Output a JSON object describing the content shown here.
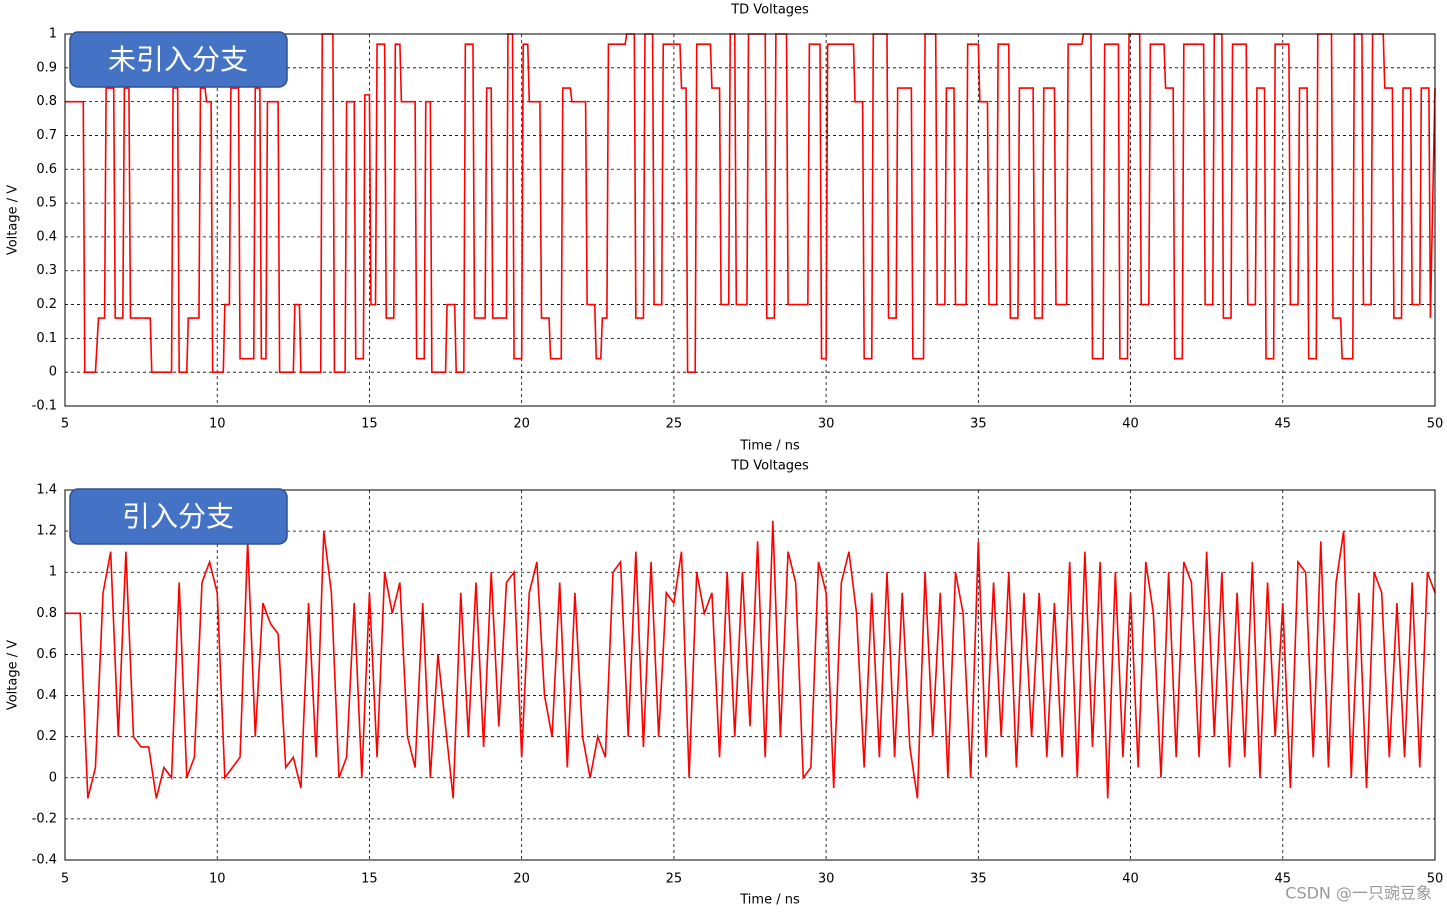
{
  "chart_data": [
    {
      "type": "line",
      "title": "TD Voltages",
      "x_label": "Time / ns",
      "y_label": "Voltage / V",
      "annotation": "未引入分支",
      "xlim": [
        5,
        50
      ],
      "xticks": [
        5,
        10,
        15,
        20,
        25,
        30,
        35,
        40,
        45,
        50
      ],
      "ylim": [
        -0.1,
        1
      ],
      "yticks": [
        -0.1,
        0,
        0.1,
        0.2,
        0.3,
        0.4,
        0.5,
        0.6,
        0.7,
        0.8,
        0.9,
        1
      ],
      "grid": true,
      "color": "#ff0000",
      "x": [
        5,
        5.6,
        5.65,
        6,
        6.1,
        6.3,
        6.35,
        6.6,
        6.65,
        6.9,
        6.95,
        7.1,
        7.15,
        7.8,
        7.85,
        8.5,
        8.55,
        8.7,
        8.75,
        9,
        9.05,
        9.4,
        9.45,
        9.6,
        9.65,
        9.8,
        9.85,
        10.2,
        10.25,
        10.4,
        10.45,
        10.7,
        10.75,
        11.2,
        11.25,
        11.4,
        11.45,
        11.6,
        11.65,
        12,
        12.05,
        12.5,
        12.55,
        12.7,
        12.75,
        13.4,
        13.45,
        13.8,
        13.85,
        14.2,
        14.25,
        14.5,
        14.55,
        14.8,
        14.85,
        15,
        15.05,
        15.2,
        15.25,
        15.5,
        15.55,
        15.8,
        15.85,
        16,
        16.05,
        16.5,
        16.55,
        16.8,
        16.85,
        17,
        17.05,
        17.5,
        17.55,
        17.8,
        17.85,
        18.1,
        18.15,
        18.4,
        18.45,
        18.8,
        18.85,
        19,
        19.05,
        19.5,
        19.55,
        19.7,
        19.75,
        20,
        20.05,
        20.2,
        20.25,
        20.6,
        20.65,
        20.9,
        20.95,
        21.3,
        21.35,
        21.6,
        21.65,
        22.1,
        22.15,
        22.4,
        22.45,
        22.6,
        22.65,
        22.8,
        22.85,
        23.4,
        23.45,
        23.7,
        23.75,
        24,
        24.05,
        24.3,
        24.35,
        24.6,
        24.65,
        25.2,
        25.25,
        25.4,
        25.45,
        25.7,
        25.75,
        26.2,
        26.25,
        26.5,
        26.55,
        26.8,
        26.85,
        27,
        27.05,
        27.4,
        27.45,
        28,
        28.05,
        28.3,
        28.35,
        28.7,
        28.75,
        29.4,
        29.45,
        29.8,
        29.85,
        30,
        30.05,
        30.9,
        30.95,
        31.2,
        31.25,
        31.5,
        31.55,
        32,
        32.05,
        32.3,
        32.35,
        32.8,
        32.85,
        33.2,
        33.25,
        33.6,
        33.65,
        33.9,
        33.95,
        34.2,
        34.25,
        34.6,
        34.65,
        35,
        35.05,
        35.3,
        35.35,
        35.6,
        35.65,
        36,
        36.05,
        36.3,
        36.35,
        36.8,
        36.85,
        37.1,
        37.15,
        37.5,
        37.55,
        37.9,
        37.95,
        38.4,
        38.45,
        38.7,
        38.75,
        39.1,
        39.15,
        39.6,
        39.65,
        39.9,
        39.95,
        40.3,
        40.35,
        40.6,
        40.65,
        41.1,
        41.15,
        41.4,
        41.45,
        41.7,
        41.75,
        42.4,
        42.45,
        42.7,
        42.75,
        43,
        43.05,
        43.3,
        43.35,
        43.8,
        43.85,
        44.1,
        44.15,
        44.4,
        44.45,
        44.7,
        44.75,
        45.2,
        45.25,
        45.5,
        45.55,
        45.8,
        45.85,
        46.1,
        46.15,
        46.6,
        46.65,
        46.9,
        46.95,
        47.3,
        47.35,
        47.6,
        47.65,
        47.9,
        47.95,
        48.3,
        48.35,
        48.6,
        48.65,
        48.9,
        48.95,
        49.2,
        49.25,
        49.5,
        49.55,
        49.8,
        49.85,
        50
      ],
      "values": [
        0.8,
        0.8,
        0,
        0,
        0.16,
        0.16,
        0.84,
        0.84,
        0.16,
        0.16,
        0.84,
        0.84,
        0.16,
        0.16,
        0,
        0,
        0.84,
        0.84,
        0,
        0,
        0.16,
        0.16,
        0.84,
        0.84,
        0.8,
        0.8,
        0,
        0,
        0.2,
        0.2,
        0.84,
        0.84,
        0.04,
        0.04,
        0.84,
        0.84,
        0.04,
        0.04,
        0.8,
        0.8,
        0,
        0,
        0.2,
        0.2,
        0,
        0,
        1,
        1,
        0,
        0,
        0.8,
        0.8,
        0.04,
        0.04,
        0.82,
        0.82,
        0.2,
        0.2,
        0.97,
        0.97,
        0.16,
        0.16,
        0.97,
        0.97,
        0.8,
        0.8,
        0.04,
        0.04,
        0.8,
        0.8,
        0,
        0,
        0.2,
        0.2,
        0,
        0,
        0.97,
        0.97,
        0.16,
        0.16,
        0.84,
        0.84,
        0.16,
        0.16,
        1,
        1,
        0.04,
        0.04,
        0.97,
        0.97,
        0.8,
        0.8,
        0.16,
        0.16,
        0.04,
        0.04,
        0.84,
        0.84,
        0.8,
        0.8,
        0.2,
        0.2,
        0.04,
        0.04,
        0.16,
        0.16,
        0.97,
        0.97,
        1,
        1,
        0.16,
        0.16,
        1,
        1,
        0.2,
        0.2,
        0.97,
        0.97,
        0.84,
        0.84,
        0,
        0,
        0.97,
        0.97,
        0.84,
        0.84,
        0.2,
        0.2,
        1,
        1,
        0.2,
        0.2,
        1,
        1,
        0.16,
        0.16,
        1,
        1,
        0.2,
        0.2,
        0.97,
        0.97,
        0.04,
        0.04,
        0.97,
        0.97,
        0.8,
        0.8,
        0.04,
        0.04,
        1,
        1,
        0.16,
        0.16,
        0.84,
        0.84,
        0.04,
        0.04,
        1,
        1,
        0.2,
        0.2,
        0.84,
        0.84,
        0.2,
        0.2,
        0.97,
        0.97,
        0.8,
        0.8,
        0.2,
        0.2,
        0.97,
        0.97,
        0.16,
        0.16,
        0.84,
        0.84,
        0.16,
        0.16,
        0.84,
        0.84,
        0.2,
        0.2,
        0.97,
        0.97,
        1,
        1,
        0.04,
        0.04,
        0.97,
        0.97,
        0.04,
        0.04,
        1,
        1,
        0.2,
        0.2,
        0.97,
        0.97,
        0.84,
        0.84,
        0.04,
        0.04,
        0.97,
        0.97,
        0.2,
        0.2,
        1,
        1,
        0.16,
        0.16,
        0.97,
        0.97,
        0.2,
        0.2,
        0.84,
        0.84,
        0.04,
        0.04,
        0.97,
        0.97,
        0.2,
        0.2,
        0.84,
        0.84,
        0.04,
        0.04,
        1,
        1,
        0.16,
        0.16,
        0.04,
        0.04,
        1,
        1,
        0.2,
        0.2,
        1,
        1,
        0.84,
        0.84,
        0.16,
        0.16,
        0.84,
        0.84,
        0.2,
        0.2,
        0.84,
        0.84,
        0.16,
        0.84
      ]
    },
    {
      "type": "line",
      "title": "TD Voltages",
      "x_label": "Time / ns",
      "y_label": "Voltage / V",
      "annotation": "引入分支",
      "xlim": [
        5,
        50
      ],
      "xticks": [
        5,
        10,
        15,
        20,
        25,
        30,
        35,
        40,
        45,
        50
      ],
      "ylim": [
        -0.4,
        1.4
      ],
      "yticks": [
        -0.4,
        -0.2,
        0,
        0.2,
        0.4,
        0.6,
        0.8,
        1,
        1.2,
        1.4
      ],
      "grid": true,
      "color": "#ff0000",
      "x": [
        5,
        5.25,
        5.5,
        5.75,
        6,
        6.25,
        6.5,
        6.75,
        7,
        7.25,
        7.5,
        7.75,
        8,
        8.25,
        8.5,
        8.75,
        9,
        9.25,
        9.5,
        9.75,
        10,
        10.25,
        10.5,
        10.75,
        11,
        11.25,
        11.5,
        11.75,
        12,
        12.25,
        12.5,
        12.75,
        13,
        13.25,
        13.5,
        13.75,
        14,
        14.25,
        14.5,
        14.75,
        15,
        15.25,
        15.5,
        15.75,
        16,
        16.25,
        16.5,
        16.75,
        17,
        17.25,
        17.5,
        17.75,
        18,
        18.25,
        18.5,
        18.75,
        19,
        19.25,
        19.5,
        19.75,
        20,
        20.25,
        20.5,
        20.75,
        21,
        21.25,
        21.5,
        21.75,
        22,
        22.25,
        22.5,
        22.75,
        23,
        23.25,
        23.5,
        23.75,
        24,
        24.25,
        24.5,
        24.75,
        25,
        25.25,
        25.5,
        25.75,
        26,
        26.25,
        26.5,
        26.75,
        27,
        27.25,
        27.5,
        27.75,
        28,
        28.25,
        28.5,
        28.75,
        29,
        29.25,
        29.5,
        29.75,
        30,
        30.25,
        30.5,
        30.75,
        31,
        31.25,
        31.5,
        31.75,
        32,
        32.25,
        32.5,
        32.75,
        33,
        33.25,
        33.5,
        33.75,
        34,
        34.25,
        34.5,
        34.75,
        35,
        35.25,
        35.5,
        35.75,
        36,
        36.25,
        36.5,
        36.75,
        37,
        37.25,
        37.5,
        37.75,
        38,
        38.25,
        38.5,
        38.75,
        39,
        39.25,
        39.5,
        39.75,
        40,
        40.25,
        40.5,
        40.75,
        41,
        41.25,
        41.5,
        41.75,
        42,
        42.25,
        42.5,
        42.75,
        43,
        43.25,
        43.5,
        43.75,
        44,
        44.25,
        44.5,
        44.75,
        45,
        45.25,
        45.5,
        45.75,
        46,
        46.25,
        46.5,
        46.75,
        47,
        47.25,
        47.5,
        47.75,
        48,
        48.25,
        48.5,
        48.75,
        49,
        49.25,
        49.5,
        49.75,
        50
      ],
      "values": [
        0.8,
        0.8,
        0.8,
        -0.1,
        0.05,
        0.9,
        1.1,
        0.2,
        1.1,
        0.2,
        0.15,
        0.15,
        -0.1,
        0.05,
        0,
        0.95,
        0,
        0.1,
        0.95,
        1.05,
        0.9,
        0,
        0.05,
        0.1,
        1.15,
        0.2,
        0.85,
        0.75,
        0.7,
        0.05,
        0.1,
        -0.05,
        0.85,
        0.1,
        1.2,
        0.9,
        0,
        0.1,
        0.85,
        0,
        0.9,
        0.1,
        1,
        0.8,
        0.95,
        0.2,
        0.05,
        0.85,
        0,
        0.6,
        0.25,
        -0.1,
        0.9,
        0.2,
        0.95,
        0.15,
        1,
        0.25,
        0.95,
        1,
        0.1,
        0.9,
        1.05,
        0.4,
        0.2,
        0.95,
        0.05,
        0.9,
        0.2,
        0,
        0.2,
        0.1,
        1,
        1.05,
        0.2,
        1.1,
        0.15,
        1.05,
        0.2,
        0.9,
        0.85,
        1.1,
        0,
        1,
        0.8,
        0.9,
        0.1,
        1,
        0.2,
        1,
        0.25,
        1.15,
        0.1,
        1.25,
        0.2,
        1.1,
        0.95,
        0,
        0.05,
        1.05,
        0.9,
        -0.05,
        0.95,
        1.1,
        0.8,
        0.05,
        0.9,
        0.1,
        1,
        0.1,
        0.9,
        0.15,
        -0.1,
        1,
        0.2,
        0.9,
        0,
        1,
        0.8,
        0,
        1.15,
        0.1,
        0.95,
        0.2,
        1,
        0.05,
        0.9,
        0.2,
        0.9,
        0.1,
        0.85,
        0.1,
        1.05,
        0,
        1.1,
        0.15,
        1.05,
        -0.1,
        1,
        0.1,
        0.9,
        0.05,
        1.05,
        0.8,
        0,
        1,
        0.1,
        1.05,
        0.95,
        0.1,
        1.1,
        0.2,
        1,
        0.05,
        0.9,
        0.1,
        1.05,
        0,
        0.95,
        0.2,
        0.85,
        -0.05,
        1.05,
        1,
        0.1,
        1.15,
        0.05,
        0.95,
        1.2,
        0,
        0.9,
        -0.05,
        1,
        0.9,
        0.1,
        0.85,
        0.1,
        0.95,
        0.05,
        1,
        0.9
      ]
    }
  ],
  "watermark": "CSDN @一只豌豆象"
}
